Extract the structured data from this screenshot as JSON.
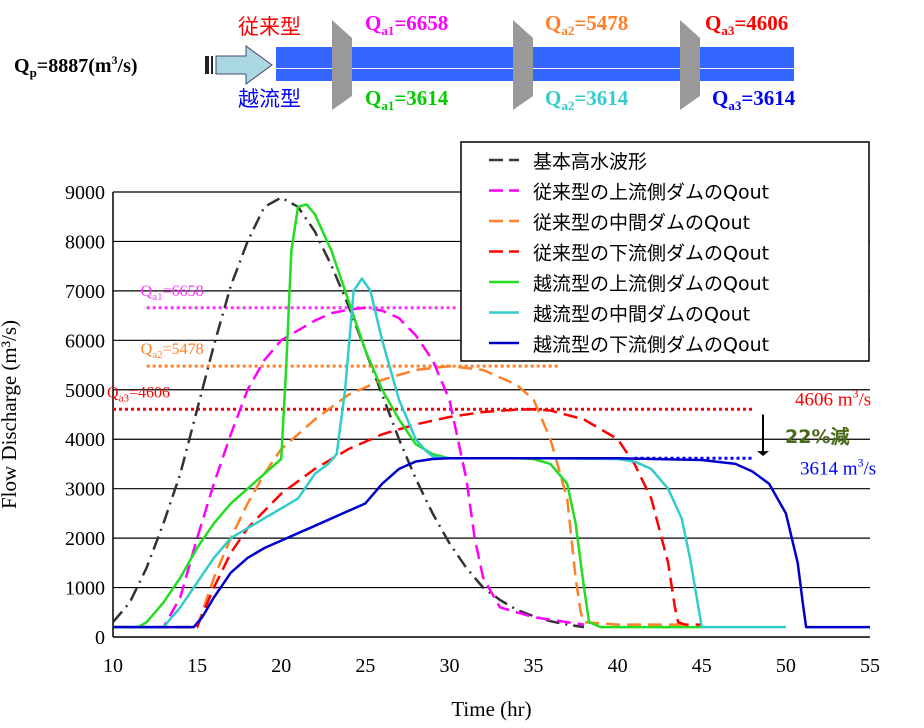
{
  "diagram": {
    "qp_label": "Q",
    "qp_sub": "p",
    "qp_value": "=8887(m",
    "qp_sup": "3",
    "qp_unit_tail": "/s)",
    "conventional_label": "従来型",
    "overflow_label": "越流型",
    "conventional_flows": [
      {
        "q": "Q",
        "sub": "a1",
        "value": "=6658",
        "color": "#ff00ff"
      },
      {
        "q": "Q",
        "sub": "a2",
        "value": "=5478",
        "color": "#ff7f27"
      },
      {
        "q": "Q",
        "sub": "a3",
        "value": "=4606",
        "color": "#ff0000"
      }
    ],
    "overflow_flows": [
      {
        "q": "Q",
        "sub": "a1",
        "value": "=3614",
        "color": "#00cc00"
      },
      {
        "q": "Q",
        "sub": "a2",
        "value": "=3614",
        "color": "#33cccc"
      },
      {
        "q": "Q",
        "sub": "a3",
        "value": "=3614",
        "color": "#0000ff"
      }
    ],
    "colors": {
      "conventional": "#ff0000",
      "overflow": "#0000ff",
      "river": "#3366ff",
      "dam": "#999999",
      "arrow": "#99ccdd"
    }
  },
  "chart_data": {
    "type": "line",
    "xlabel": "Time (hr)",
    "ylabel": "Flow Discharge (m³/s)",
    "xlim": [
      10,
      55
    ],
    "ylim": [
      0,
      9000
    ],
    "xticks": [
      10,
      15,
      20,
      25,
      30,
      35,
      40,
      45,
      50,
      55
    ],
    "yticks": [
      0,
      1000,
      2000,
      3000,
      4000,
      5000,
      6000,
      7000,
      8000,
      9000
    ],
    "grid": "horizontal",
    "legend_position": "top-right",
    "series": [
      {
        "name": "基本高水波形",
        "color": "#333333",
        "dash": "14 6 2 6",
        "x": [
          10,
          11,
          12,
          13,
          14,
          15,
          16,
          17,
          18,
          19,
          20,
          21,
          22,
          23,
          24,
          25,
          26,
          27,
          28,
          29,
          30,
          31,
          32,
          33,
          34,
          35,
          36,
          37,
          38
        ],
        "y": [
          300,
          700,
          1400,
          2300,
          3300,
          4600,
          5900,
          7100,
          8000,
          8700,
          8887,
          8700,
          8200,
          7500,
          6700,
          5800,
          4900,
          4000,
          3200,
          2500,
          1900,
          1400,
          1000,
          750,
          550,
          420,
          320,
          250,
          200
        ]
      },
      {
        "name": "従来型の上流側ダムのQout",
        "color": "#ff00ff",
        "dash": "14 7",
        "x": [
          10,
          13,
          14,
          15,
          16,
          17,
          18,
          19,
          20,
          21,
          22,
          23,
          24,
          25,
          26,
          27,
          28,
          29,
          30,
          31,
          31.5,
          32,
          33,
          35,
          37,
          38
        ],
        "y": [
          200,
          200,
          800,
          2000,
          3100,
          4100,
          5000,
          5600,
          6000,
          6200,
          6400,
          6550,
          6620,
          6658,
          6600,
          6450,
          6100,
          5600,
          4800,
          3200,
          2000,
          1200,
          600,
          400,
          300,
          250
        ]
      },
      {
        "name": "従来型の中間ダムのQout",
        "color": "#ff7f27",
        "dash": "14 7",
        "x": [
          10,
          15,
          16,
          17,
          18,
          19,
          20,
          22,
          24,
          26,
          28,
          30,
          32,
          34,
          35,
          36,
          37,
          37.5,
          37.8,
          38,
          40,
          42,
          44
        ],
        "y": [
          200,
          200,
          1200,
          2000,
          2700,
          3300,
          3800,
          4400,
          4900,
          5200,
          5400,
          5478,
          5400,
          5100,
          4800,
          4000,
          2800,
          1200,
          500,
          300,
          250,
          250,
          250
        ]
      },
      {
        "name": "従来型の下流側ダムのQout",
        "color": "#ff0000",
        "dash": "14 7",
        "x": [
          10,
          15,
          16,
          17,
          18,
          20,
          22,
          24,
          26,
          28,
          30,
          32,
          34,
          35,
          36,
          38,
          40,
          41,
          42,
          43,
          43.4,
          43.6,
          44,
          45
        ],
        "y": [
          200,
          200,
          1000,
          1700,
          2200,
          2900,
          3400,
          3800,
          4100,
          4300,
          4450,
          4550,
          4600,
          4606,
          4580,
          4400,
          4000,
          3500,
          2800,
          1500,
          600,
          300,
          250,
          250
        ]
      },
      {
        "name": "越流型の上流側ダムのQout",
        "color": "#22dd22",
        "dash": "",
        "x": [
          10,
          11.5,
          12,
          13,
          14,
          15,
          16,
          17,
          18,
          19,
          20,
          20.3,
          20.6,
          21,
          21.5,
          22,
          23,
          24,
          25,
          26,
          27,
          28,
          29,
          30,
          32,
          34,
          35,
          36,
          37,
          37.5,
          38,
          38.3,
          39,
          45
        ],
        "y": [
          200,
          200,
          300,
          700,
          1200,
          1800,
          2300,
          2700,
          3000,
          3300,
          3600,
          5500,
          7800,
          8700,
          8750,
          8550,
          7800,
          6800,
          5800,
          5000,
          4400,
          3900,
          3700,
          3614,
          3614,
          3614,
          3600,
          3500,
          3100,
          2300,
          1000,
          300,
          200,
          200
        ]
      },
      {
        "name": "越流型の中間ダムのQout",
        "color": "#33cccc",
        "dash": "",
        "x": [
          10,
          13,
          14,
          15,
          16,
          17,
          18,
          19,
          20,
          21,
          22,
          22.8,
          23.3,
          23.8,
          24.3,
          24.8,
          25.3,
          26,
          27,
          28,
          28.5,
          29,
          30,
          35,
          40,
          41,
          42,
          43,
          43.8,
          44.3,
          44.8,
          45,
          50
        ],
        "y": [
          200,
          200,
          600,
          1100,
          1600,
          2000,
          2200,
          2400,
          2600,
          2800,
          3300,
          3500,
          3700,
          5000,
          7000,
          7250,
          7000,
          6000,
          4800,
          4000,
          3800,
          3650,
          3614,
          3614,
          3600,
          3550,
          3400,
          3000,
          2400,
          1600,
          600,
          200,
          200
        ]
      },
      {
        "name": "越流型の下流側ダムのQout",
        "color": "#0000cc",
        "dash": "",
        "x": [
          10,
          14.8,
          15.3,
          16,
          17,
          18,
          19,
          20,
          21,
          22,
          23,
          24,
          25,
          26,
          27,
          28,
          29,
          30,
          35,
          40,
          45,
          47,
          48,
          49,
          50,
          50.7,
          51,
          51.2,
          55
        ],
        "y": [
          200,
          200,
          400,
          800,
          1300,
          1600,
          1800,
          1950,
          2100,
          2250,
          2400,
          2550,
          2700,
          3100,
          3400,
          3550,
          3600,
          3614,
          3614,
          3614,
          3580,
          3500,
          3350,
          3100,
          2500,
          1500,
          700,
          200,
          200
        ]
      }
    ],
    "reference_lines": [
      {
        "label_q": "Q",
        "label_sub": "a1",
        "label_value": "=6658",
        "y": 6658,
        "x_from": 12,
        "x_to": 30.5,
        "color": "#ff33ff"
      },
      {
        "label_q": "Q",
        "label_sub": "a2",
        "label_value": "=5478",
        "y": 5478,
        "x_from": 12,
        "x_to": 36.5,
        "color": "#ff7f27"
      },
      {
        "label_q": "Q",
        "label_sub": "a3",
        "label_value": "=4606",
        "y": 4606,
        "x_from": 10,
        "x_to": 48,
        "color": "#ff0000"
      },
      {
        "y": 3614,
        "x_from": 41,
        "x_to": 48,
        "color": "#0000ff"
      }
    ],
    "annotations": {
      "conv_value": "4606 m",
      "conv_sup": "3",
      "conv_tail": "/s",
      "conv_color": "#ff0000",
      "over_value": "3614 m",
      "over_sup": "3",
      "over_tail": "/s",
      "over_color": "#0000ff",
      "reduction": "22%減",
      "reduction_color": "#4a6a1a"
    }
  }
}
